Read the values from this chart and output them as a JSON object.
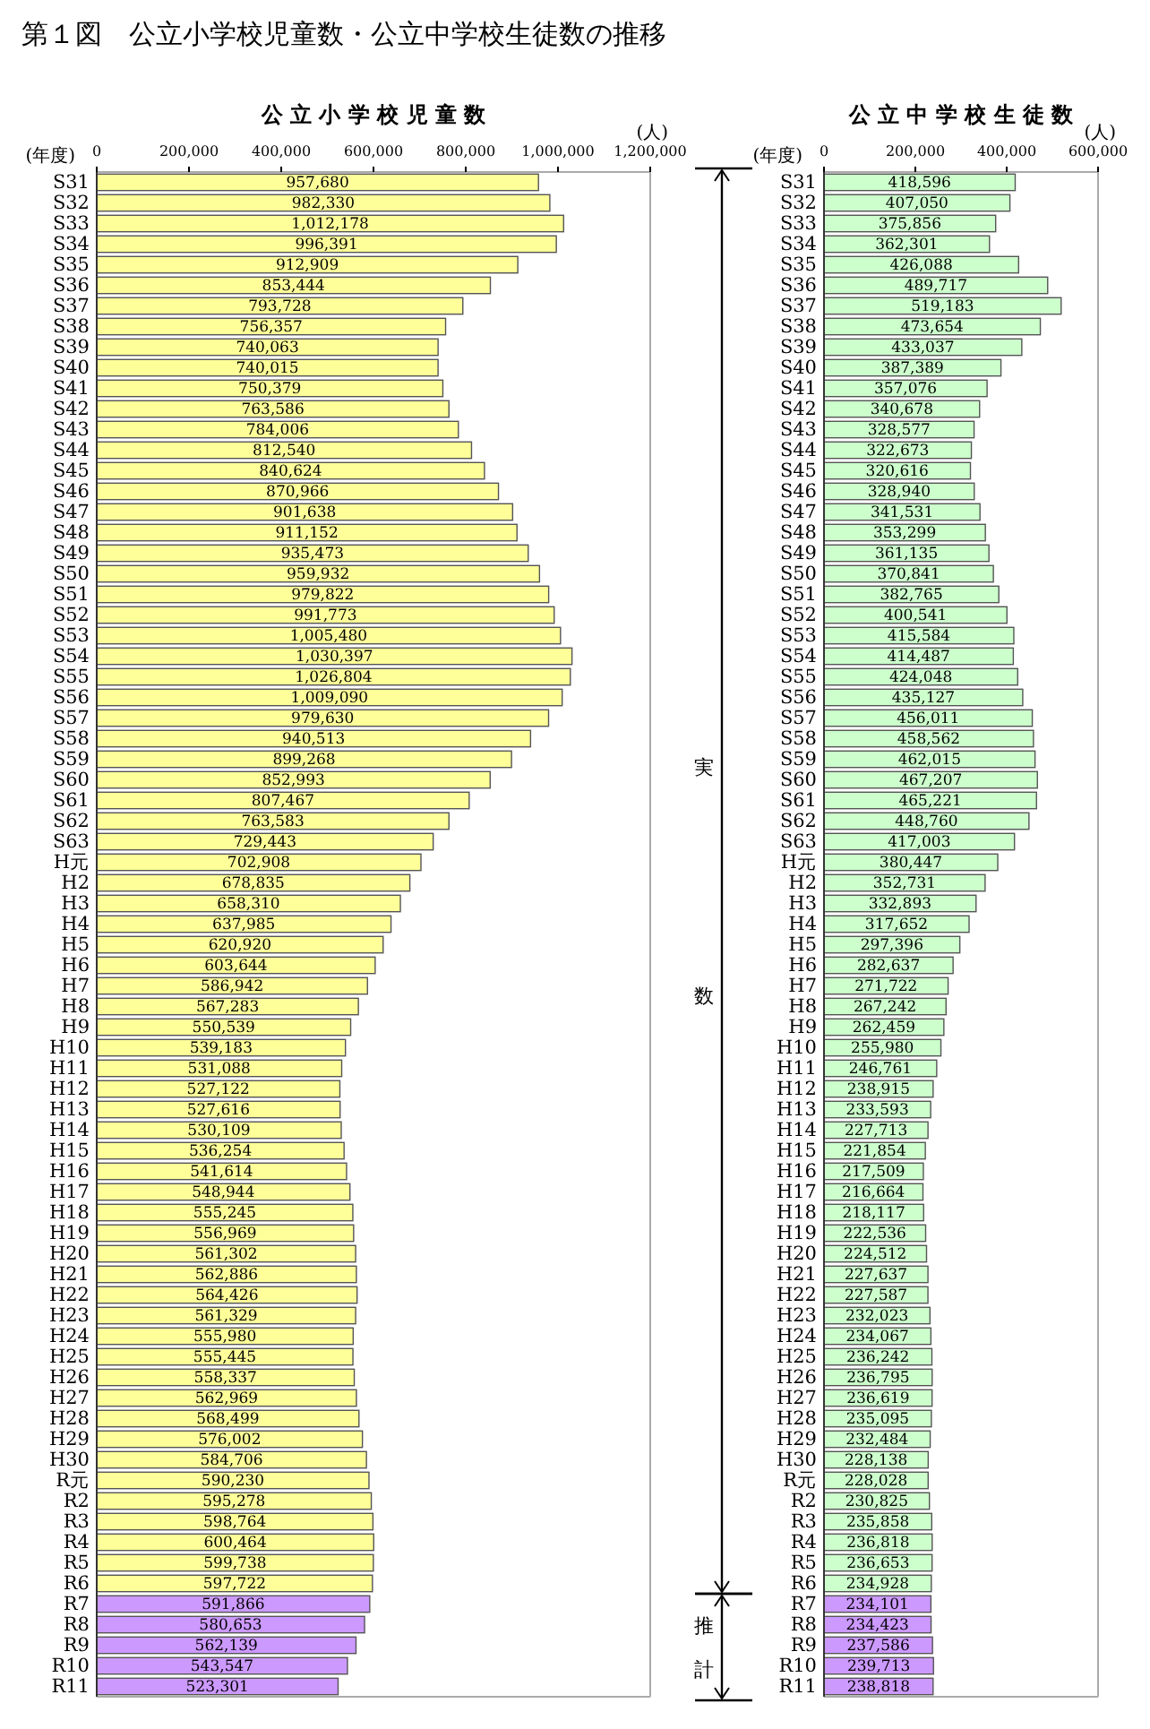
{
  "chart_data": [
    {
      "type": "bar",
      "orientation": "horizontal",
      "title": "公 立 小 学 校 児 童 数",
      "xlabel": "(人)",
      "ylabel": "(年度)",
      "annotations": [
        "第１図　公立小学校児童数・公立中学校生徒数の推移"
      ],
      "categories": [
        "S31",
        "S32",
        "S33",
        "S34",
        "S35",
        "S36",
        "S37",
        "S38",
        "S39",
        "S40",
        "S41",
        "S42",
        "S43",
        "S44",
        "S45",
        "S46",
        "S47",
        "S48",
        "S49",
        "S50",
        "S51",
        "S52",
        "S53",
        "S54",
        "S55",
        "S56",
        "S57",
        "S58",
        "S59",
        "S60",
        "S61",
        "S62",
        "S63",
        "H元",
        "H2",
        "H3",
        "H4",
        "H5",
        "H6",
        "H7",
        "H8",
        "H9",
        "H10",
        "H11",
        "H12",
        "H13",
        "H14",
        "H15",
        "H16",
        "H17",
        "H18",
        "H19",
        "H20",
        "H21",
        "H22",
        "H23",
        "H24",
        "H25",
        "H26",
        "H27",
        "H28",
        "H29",
        "H30",
        "R元",
        "R2",
        "R3",
        "R4",
        "R5",
        "R6",
        "R7",
        "R8",
        "R9",
        "R10",
        "R11"
      ],
      "values": [
        957680,
        982330,
        1012178,
        996391,
        912909,
        853444,
        793728,
        756357,
        740063,
        740015,
        750379,
        763586,
        784006,
        812540,
        840624,
        870966,
        901638,
        911152,
        935473,
        959932,
        979822,
        991773,
        1005480,
        1030397,
        1026804,
        1009090,
        979630,
        940513,
        899268,
        852993,
        807467,
        763583,
        729443,
        702908,
        678835,
        658310,
        637985,
        620920,
        603644,
        586942,
        567283,
        550539,
        539183,
        531088,
        527122,
        527616,
        530109,
        536254,
        541614,
        548944,
        555245,
        556969,
        561302,
        562886,
        564426,
        561329,
        555980,
        555445,
        558337,
        562969,
        568499,
        576002,
        584706,
        590230,
        595278,
        598764,
        600464,
        599738,
        597722,
        591866,
        580653,
        562139,
        543547,
        523301
      ],
      "colors": [
        "#ffff99",
        "#ffff99",
        "#ffff99",
        "#ffff99",
        "#ffff99",
        "#ffff99",
        "#ffff99",
        "#ffff99",
        "#ffff99",
        "#ffff99",
        "#ffff99",
        "#ffff99",
        "#ffff99",
        "#ffff99",
        "#ffff99",
        "#ffff99",
        "#ffff99",
        "#ffff99",
        "#ffff99",
        "#ffff99",
        "#ffff99",
        "#ffff99",
        "#ffff99",
        "#ffff99",
        "#ffff99",
        "#ffff99",
        "#ffff99",
        "#ffff99",
        "#ffff99",
        "#ffff99",
        "#ffff99",
        "#ffff99",
        "#ffff99",
        "#ffff99",
        "#ffff99",
        "#ffff99",
        "#ffff99",
        "#ffff99",
        "#ffff99",
        "#ffff99",
        "#ffff99",
        "#ffff99",
        "#ffff99",
        "#ffff99",
        "#ffff99",
        "#ffff99",
        "#ffff99",
        "#ffff99",
        "#ffff99",
        "#ffff99",
        "#ffff99",
        "#ffff99",
        "#ffff99",
        "#ffff99",
        "#ffff99",
        "#ffff99",
        "#ffff99",
        "#ffff99",
        "#ffff99",
        "#ffff99",
        "#ffff99",
        "#ffff99",
        "#ffff99",
        "#ffff99",
        "#ffff99",
        "#ffff99",
        "#ffff99",
        "#ffff99",
        "#ffff99",
        "#cc99ff",
        "#cc99ff",
        "#cc99ff",
        "#cc99ff",
        "#cc99ff"
      ],
      "xlim": [
        0,
        1200000
      ],
      "xticks": [
        0,
        {
          "value": 200000,
          "label": "200,000"
        },
        {
          "value": 400000,
          "label": "400,000"
        },
        {
          "value": 600000,
          "label": "600,000"
        },
        {
          "value": 800000,
          "label": "800,000"
        },
        {
          "value": 1000000,
          "label": "1,000,000"
        },
        {
          "value": 1200000,
          "label": "1,200,000"
        }
      ],
      "value_labels": [
        "957,680",
        "982,330",
        "1,012,178",
        "996,391",
        "912,909",
        "853,444",
        "793,728",
        "756,357",
        "740,063",
        "740,015",
        "750,379",
        "763,586",
        "784,006",
        "812,540",
        "840,624",
        "870,966",
        "901,638",
        "911,152",
        "935,473",
        "959,932",
        "979,822",
        "991,773",
        "1,005,480",
        "1,030,397",
        "1,026,804",
        "1,009,090",
        "979,630",
        "940,513",
        "899,268",
        "852,993",
        "807,467",
        "763,583",
        "729,443",
        "702,908",
        "678,835",
        "658,310",
        "637,985",
        "620,920",
        "603,644",
        "586,942",
        "567,283",
        "550,539",
        "539,183",
        "531,088",
        "527,122",
        "527,616",
        "530,109",
        "536,254",
        "541,614",
        "548,944",
        "555,245",
        "556,969",
        "561,302",
        "562,886",
        "564,426",
        "561,329",
        "555,980",
        "555,445",
        "558,337",
        "562,969",
        "568,499",
        "576,002",
        "584,706",
        "590,230",
        "595,278",
        "598,764",
        "600,464",
        "599,738",
        "597,722",
        "591,866",
        "580,653",
        "562,139",
        "543,547",
        "523,301"
      ]
    },
    {
      "type": "bar",
      "orientation": "horizontal",
      "title": "公 立 中 学 校 生 徒 数",
      "xlabel": "(人)",
      "ylabel": "(年度)",
      "annotations": [
        "実",
        "数",
        "推",
        "計"
      ],
      "categories": [
        "S31",
        "S32",
        "S33",
        "S34",
        "S35",
        "S36",
        "S37",
        "S38",
        "S39",
        "S40",
        "S41",
        "S42",
        "S43",
        "S44",
        "S45",
        "S46",
        "S47",
        "S48",
        "S49",
        "S50",
        "S51",
        "S52",
        "S53",
        "S54",
        "S55",
        "S56",
        "S57",
        "S58",
        "S59",
        "S60",
        "S61",
        "S62",
        "S63",
        "H元",
        "H2",
        "H3",
        "H4",
        "H5",
        "H6",
        "H7",
        "H8",
        "H9",
        "H10",
        "H11",
        "H12",
        "H13",
        "H14",
        "H15",
        "H16",
        "H17",
        "H18",
        "H19",
        "H20",
        "H21",
        "H22",
        "H23",
        "H24",
        "H25",
        "H26",
        "H27",
        "H28",
        "H29",
        "H30",
        "R元",
        "R2",
        "R3",
        "R4",
        "R5",
        "R6",
        "R7",
        "R8",
        "R9",
        "R10",
        "R11"
      ],
      "values": [
        418596,
        407050,
        375856,
        362301,
        426088,
        489717,
        519183,
        473654,
        433037,
        387389,
        357076,
        340678,
        328577,
        322673,
        320616,
        328940,
        341531,
        353299,
        361135,
        370841,
        382765,
        400541,
        415584,
        414487,
        424048,
        435127,
        456011,
        458562,
        462015,
        467207,
        465221,
        448760,
        417003,
        380447,
        352731,
        332893,
        317652,
        297396,
        282637,
        271722,
        267242,
        262459,
        255980,
        246761,
        238915,
        233593,
        227713,
        221854,
        217509,
        216664,
        218117,
        222536,
        224512,
        227637,
        227587,
        232023,
        234067,
        236242,
        236795,
        236619,
        235095,
        232484,
        228138,
        228028,
        230825,
        235858,
        236818,
        236653,
        234928,
        234101,
        234423,
        237586,
        239713,
        238818
      ],
      "colors": [
        "#ccffcc",
        "#ccffcc",
        "#ccffcc",
        "#ccffcc",
        "#ccffcc",
        "#ccffcc",
        "#ccffcc",
        "#ccffcc",
        "#ccffcc",
        "#ccffcc",
        "#ccffcc",
        "#ccffcc",
        "#ccffcc",
        "#ccffcc",
        "#ccffcc",
        "#ccffcc",
        "#ccffcc",
        "#ccffcc",
        "#ccffcc",
        "#ccffcc",
        "#ccffcc",
        "#ccffcc",
        "#ccffcc",
        "#ccffcc",
        "#ccffcc",
        "#ccffcc",
        "#ccffcc",
        "#ccffcc",
        "#ccffcc",
        "#ccffcc",
        "#ccffcc",
        "#ccffcc",
        "#ccffcc",
        "#ccffcc",
        "#ccffcc",
        "#ccffcc",
        "#ccffcc",
        "#ccffcc",
        "#ccffcc",
        "#ccffcc",
        "#ccffcc",
        "#ccffcc",
        "#ccffcc",
        "#ccffcc",
        "#ccffcc",
        "#ccffcc",
        "#ccffcc",
        "#ccffcc",
        "#ccffcc",
        "#ccffcc",
        "#ccffcc",
        "#ccffcc",
        "#ccffcc",
        "#ccffcc",
        "#ccffcc",
        "#ccffcc",
        "#ccffcc",
        "#ccffcc",
        "#ccffcc",
        "#ccffcc",
        "#ccffcc",
        "#ccffcc",
        "#ccffcc",
        "#ccffcc",
        "#ccffcc",
        "#ccffcc",
        "#ccffcc",
        "#ccffcc",
        "#ccffcc",
        "#cc99ff",
        "#cc99ff",
        "#cc99ff",
        "#cc99ff",
        "#cc99ff"
      ],
      "xlim": [
        0,
        600000
      ],
      "xticks": [
        0,
        {
          "value": 200000,
          "label": "200,000"
        },
        {
          "value": 400000,
          "label": "400,000"
        },
        {
          "value": 600000,
          "label": "600,000"
        }
      ],
      "value_labels": [
        "418,596",
        "407,050",
        "375,856",
        "362,301",
        "426,088",
        "489,717",
        "519,183",
        "473,654",
        "433,037",
        "387,389",
        "357,076",
        "340,678",
        "328,577",
        "322,673",
        "320,616",
        "328,940",
        "341,531",
        "353,299",
        "361,135",
        "370,841",
        "382,765",
        "400,541",
        "415,584",
        "414,487",
        "424,048",
        "435,127",
        "456,011",
        "458,562",
        "462,015",
        "467,207",
        "465,221",
        "448,760",
        "417,003",
        "380,447",
        "352,731",
        "332,893",
        "317,652",
        "297,396",
        "282,637",
        "271,722",
        "267,242",
        "262,459",
        "255,980",
        "246,761",
        "238,915",
        "233,593",
        "227,713",
        "221,854",
        "217,509",
        "216,664",
        "218,117",
        "222,536",
        "224,512",
        "227,637",
        "227,587",
        "232,023",
        "234,067",
        "236,242",
        "236,795",
        "236,619",
        "235,095",
        "232,484",
        "228,138",
        "228,028",
        "230,825",
        "235,858",
        "236,818",
        "236,653",
        "234,928",
        "234,101",
        "234,423",
        "237,586",
        "239,713",
        "238,818"
      ]
    }
  ]
}
